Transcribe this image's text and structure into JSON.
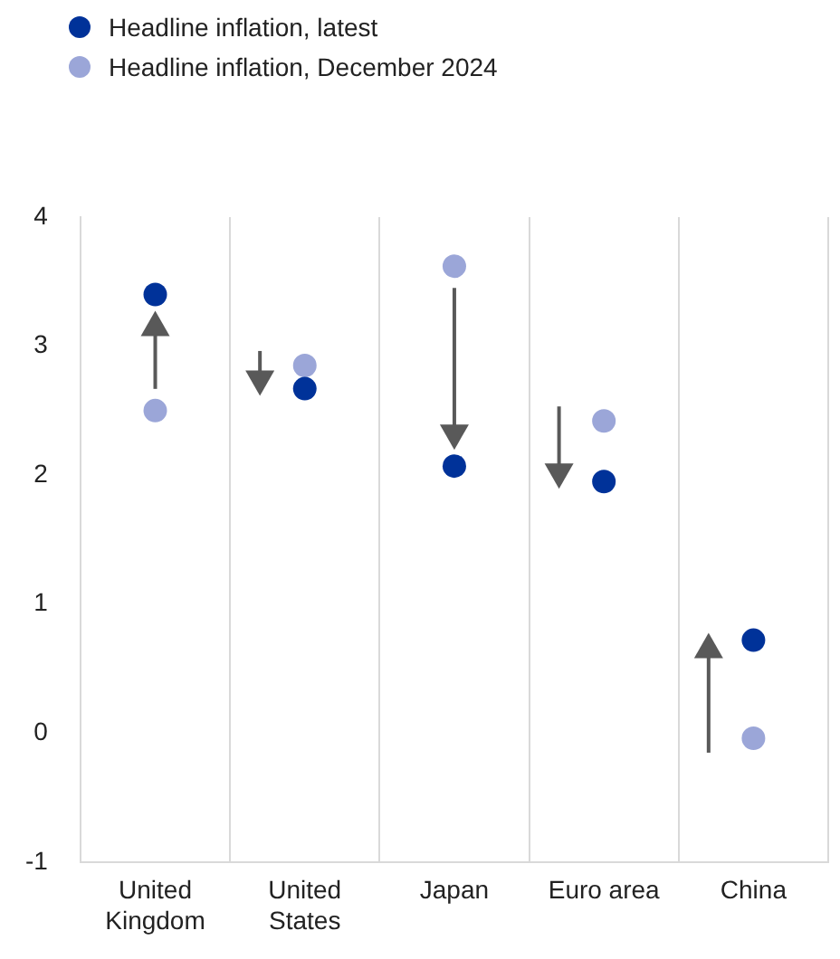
{
  "chart_data": {
    "type": "scatter",
    "categories": [
      "United Kingdom",
      "United States",
      "Japan",
      "Euro area",
      "China"
    ],
    "series": [
      {
        "name": "Headline inflation, latest",
        "color": "#003299",
        "values": [
          3.4,
          2.67,
          2.07,
          1.95,
          0.72
        ]
      },
      {
        "name": "Headline inflation, December 2024",
        "color": "#9ba6d8",
        "values": [
          2.5,
          2.85,
          3.62,
          2.42,
          -0.04
        ]
      }
    ],
    "ylim": [
      -1,
      4
    ],
    "yticks": [
      -1,
      0,
      1,
      2,
      3,
      4
    ],
    "grid": "x",
    "legend": "top left",
    "marker": "circle"
  }
}
